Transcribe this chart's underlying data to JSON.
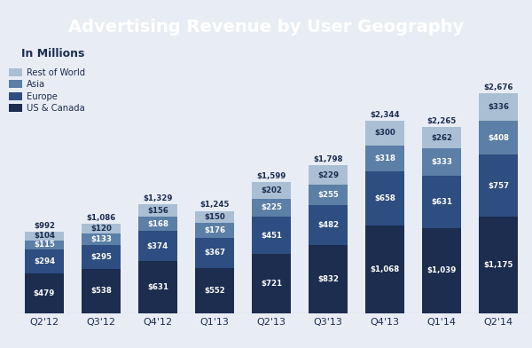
{
  "title": "Advertising Revenue by User Geography",
  "subtitle": "In Millions",
  "quarters": [
    "Q2'12",
    "Q3'12",
    "Q4'12",
    "Q1'13",
    "Q2'13",
    "Q3'13",
    "Q4'13",
    "Q1'14",
    "Q2'14"
  ],
  "us_canada": [
    479,
    538,
    631,
    552,
    721,
    832,
    1068,
    1039,
    1175
  ],
  "europe": [
    294,
    295,
    374,
    367,
    451,
    482,
    658,
    631,
    757
  ],
  "asia": [
    115,
    133,
    168,
    176,
    225,
    255,
    318,
    333,
    408
  ],
  "rest_of_world": [
    104,
    120,
    156,
    150,
    202,
    229,
    300,
    262,
    336
  ],
  "totals": [
    992,
    1086,
    1329,
    1245,
    1599,
    1798,
    2344,
    2265,
    2676
  ],
  "color_us": "#1c2d4f",
  "color_eu": "#2e4d80",
  "color_asia": "#5b7fa6",
  "color_row": "#aabfd4",
  "title_bg": "#4e6ea0",
  "title_color": "#ffffff",
  "bg_color": "#e8edf5",
  "label_color_dark": "#ffffff",
  "label_color_light": "#1c2d4f",
  "total_color": "#1c2d4f",
  "legend_labels": [
    "Rest of World",
    "Asia",
    "Europe",
    "US & Canada"
  ],
  "legend_colors": [
    "#aabfd4",
    "#5b7fa6",
    "#2e4d80",
    "#1c2d4f"
  ]
}
